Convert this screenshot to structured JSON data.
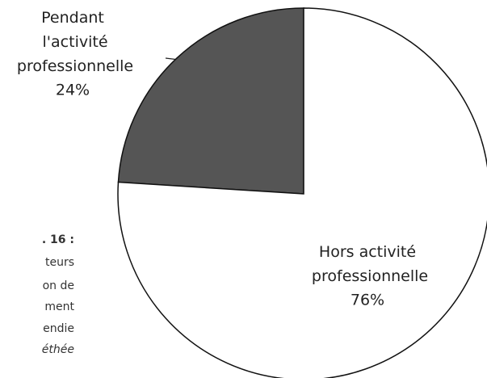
{
  "chart_data": {
    "type": "pie",
    "categories": [
      "Pendant l'activité professionnelle",
      "Hors activité professionnelle"
    ],
    "values": [
      24,
      76
    ],
    "value_labels": [
      "24%",
      "76%"
    ],
    "colors": [
      "#555555",
      "#ffffff"
    ],
    "annotations": [
      ". 16 :",
      "teurs",
      "on de",
      "ment",
      "endie",
      "éthée"
    ]
  }
}
